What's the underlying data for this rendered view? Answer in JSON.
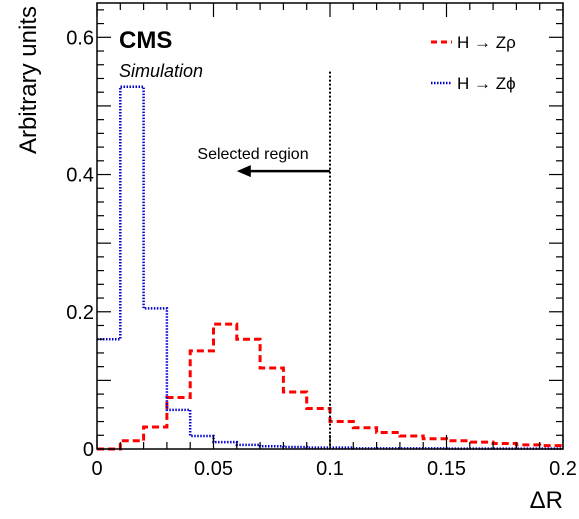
{
  "chart_data": {
    "type": "line",
    "title": "",
    "experiment_label": "CMS",
    "sub_label": "Simulation",
    "xlabel": "ΔR",
    "ylabel": "Arbitrary units",
    "xlim": [
      0,
      0.2
    ],
    "ylim": [
      0,
      0.65
    ],
    "x_tick_labels": [
      "0",
      "0.05",
      "0.1",
      "0.15",
      "0.2"
    ],
    "x_ticks": [
      0,
      0.05,
      0.1,
      0.15,
      0.2
    ],
    "y_tick_labels": [
      "0",
      "0.2",
      "0.4",
      "0.6"
    ],
    "y_ticks": [
      0,
      0.2,
      0.4,
      0.6
    ],
    "grid": false,
    "legend_position": "top-right",
    "bin_edges": [
      0,
      0.01,
      0.02,
      0.03,
      0.04,
      0.05,
      0.06,
      0.07,
      0.08,
      0.09,
      0.1,
      0.11,
      0.12,
      0.13,
      0.14,
      0.15,
      0.16,
      0.17,
      0.18,
      0.19,
      0.2
    ],
    "series": [
      {
        "name": "H → Zρ",
        "color": "#ff0000",
        "style": "dashed",
        "values": [
          0.0,
          0.012,
          0.032,
          0.075,
          0.143,
          0.182,
          0.16,
          0.118,
          0.083,
          0.059,
          0.04,
          0.031,
          0.024,
          0.019,
          0.015,
          0.012,
          0.01,
          0.008,
          0.006,
          0.005
        ]
      },
      {
        "name": "H → Zϕ",
        "color": "#0000cc",
        "style": "dotted",
        "values": [
          0.16,
          0.528,
          0.205,
          0.057,
          0.019,
          0.01,
          0.006,
          0.004,
          0.003,
          0.002,
          0.002,
          0.001,
          0.001,
          0.001,
          0.001,
          0.0005,
          0.0005,
          0.0005,
          0.0005,
          0.0005
        ]
      }
    ],
    "annotation": {
      "text": "Selected region",
      "cut_x": 0.1,
      "arrow_from_x": 0.1,
      "arrow_to_x": 0.06,
      "arrow_y": 0.405,
      "direction": "left"
    }
  }
}
